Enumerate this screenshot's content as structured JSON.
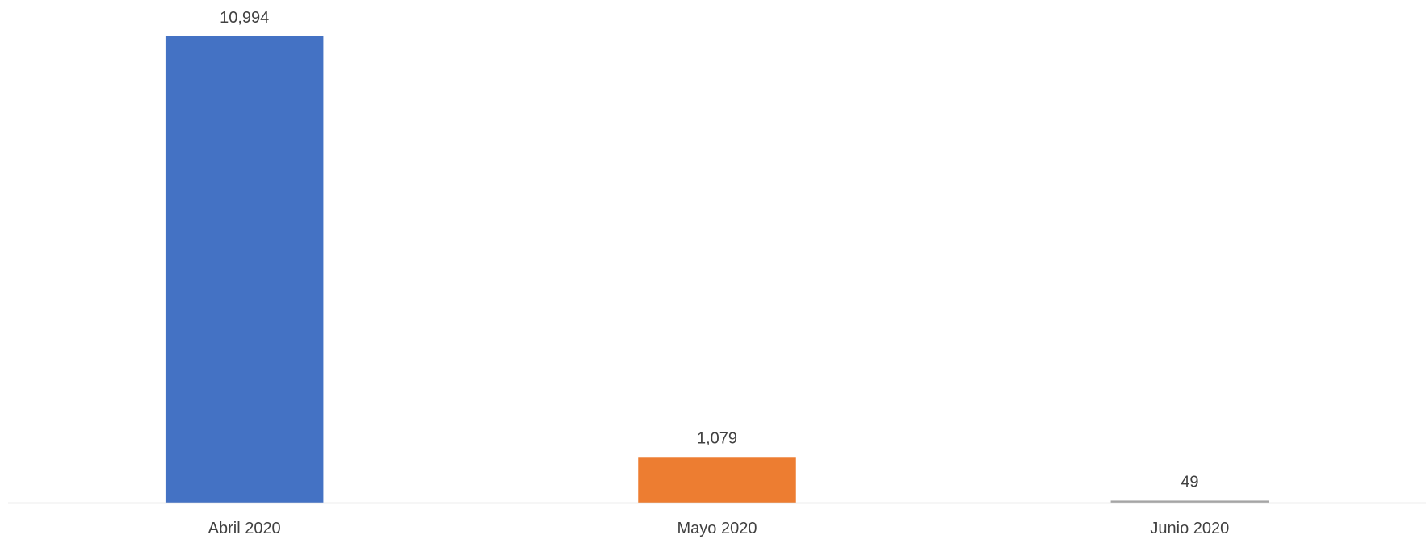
{
  "chart_data": {
    "type": "bar",
    "categories": [
      "Abril 2020",
      "Mayo 2020",
      "Junio 2020"
    ],
    "values": [
      10994,
      1079,
      49
    ],
    "data_labels": [
      "10,994",
      "1,079",
      "49"
    ],
    "colors": [
      "#4472C4",
      "#ED7D31",
      "#A5A5A5"
    ],
    "title": "",
    "xlabel": "",
    "ylabel": "",
    "ylim": [
      0,
      10994
    ],
    "grid": false,
    "legend": "none"
  }
}
